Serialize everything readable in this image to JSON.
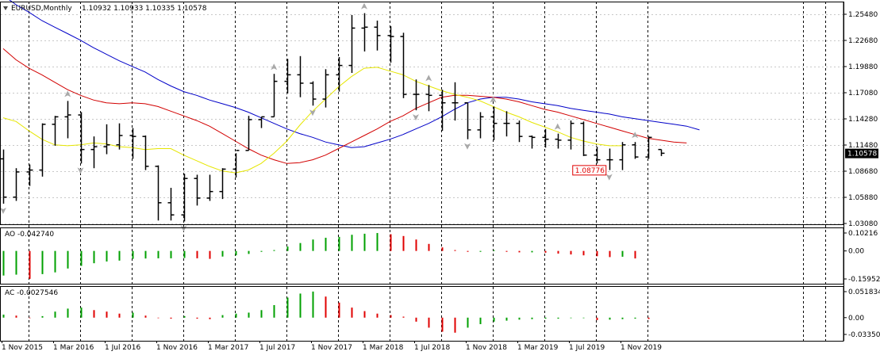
{
  "chart_data": {
    "type": "ohlc",
    "timeframe": "Monthly",
    "main": {
      "title": "EURUSD,Monthly",
      "ohlc_text": "1.10932 1.10933 1.10335 1.10578",
      "price_axis": {
        "ylim": [
          1.0308,
          1.2548
        ],
        "ticks": [
          "1.25480",
          "1.22680",
          "1.19880",
          "1.17080",
          "1.14280",
          "1.11480",
          "1.08680",
          "1.05880",
          "1.03080"
        ]
      },
      "current_price": "1.10578",
      "current_price_value": 1.10578,
      "callout": {
        "label": "1.08776",
        "value": 1.08776,
        "bar_index": 47
      },
      "x_tick_labels": [
        "1 Nov 2015",
        "1 Mar 2016",
        "1 Jul 2016",
        "1 Nov 2016",
        "1 Mar 2017",
        "1 Jul 2017",
        "1 Nov 2017",
        "1 Mar 2018",
        "1 Jul 2018",
        "1 Nov 2018",
        "1 Mar 2019",
        "1 Jul 2019",
        "1 Nov 2019"
      ],
      "bars": [
        [
          1.1,
          1.11,
          1.052,
          1.059
        ],
        [
          1.059,
          1.09,
          1.055,
          1.086
        ],
        [
          1.086,
          1.094,
          1.071,
          1.088
        ],
        [
          1.088,
          1.138,
          1.081,
          1.137
        ],
        [
          1.137,
          1.146,
          1.114,
          1.145
        ],
        [
          1.145,
          1.162,
          1.122,
          1.147
        ],
        [
          1.147,
          1.15,
          1.095,
          1.11
        ],
        [
          1.11,
          1.124,
          1.09,
          1.113
        ],
        [
          1.113,
          1.137,
          1.105,
          1.115
        ],
        [
          1.115,
          1.138,
          1.11,
          1.125
        ],
        [
          1.125,
          1.133,
          1.1,
          1.124
        ],
        [
          1.124,
          1.125,
          1.088,
          1.092
        ],
        [
          1.092,
          1.093,
          1.034,
          1.053
        ],
        [
          1.053,
          1.069,
          1.034,
          1.04
        ],
        [
          1.04,
          1.084,
          1.033,
          1.079
        ],
        [
          1.079,
          1.083,
          1.05,
          1.058
        ],
        [
          1.058,
          1.083,
          1.055,
          1.065
        ],
        [
          1.065,
          1.09,
          1.057,
          1.089
        ],
        [
          1.089,
          1.106,
          1.08,
          1.109
        ],
        [
          1.109,
          1.146,
          1.109,
          1.142
        ],
        [
          1.142,
          1.145,
          1.133,
          1.145
        ],
        [
          1.145,
          1.191,
          1.145,
          1.183
        ],
        [
          1.183,
          1.207,
          1.17,
          1.19
        ],
        [
          1.19,
          1.21,
          1.166,
          1.181
        ],
        [
          1.181,
          1.183,
          1.157,
          1.164
        ],
        [
          1.164,
          1.196,
          1.155,
          1.19
        ],
        [
          1.19,
          1.209,
          1.172,
          1.2
        ],
        [
          1.2,
          1.254,
          1.192,
          1.24
        ],
        [
          1.24,
          1.256,
          1.215,
          1.241
        ],
        [
          1.241,
          1.248,
          1.216,
          1.232
        ],
        [
          1.232,
          1.242,
          1.203,
          1.231
        ],
        [
          1.231,
          1.235,
          1.165,
          1.169
        ],
        [
          1.169,
          1.185,
          1.152,
          1.169
        ],
        [
          1.169,
          1.179,
          1.151,
          1.168
        ],
        [
          1.168,
          1.174,
          1.13,
          1.16
        ],
        [
          1.16,
          1.182,
          1.141,
          1.16
        ],
        [
          1.16,
          1.16,
          1.121,
          1.131
        ],
        [
          1.131,
          1.15,
          1.122,
          1.145
        ],
        [
          1.145,
          1.156,
          1.12,
          1.138
        ],
        [
          1.138,
          1.151,
          1.124,
          1.138
        ],
        [
          1.138,
          1.141,
          1.118,
          1.124
        ],
        [
          1.124,
          1.125,
          1.111,
          1.123
        ],
        [
          1.123,
          1.132,
          1.112,
          1.121
        ],
        [
          1.121,
          1.127,
          1.111,
          1.12
        ],
        [
          1.12,
          1.141,
          1.11,
          1.138
        ],
        [
          1.138,
          1.14,
          1.103,
          1.104
        ],
        [
          1.104,
          1.113,
          1.095,
          1.099
        ],
        [
          1.099,
          1.111,
          1.088,
          1.099
        ],
        [
          1.099,
          1.118,
          1.088,
          1.115
        ],
        [
          1.115,
          1.118,
          1.1,
          1.102
        ],
        [
          1.102,
          1.124,
          1.1,
          1.123
        ],
        [
          1.11,
          1.11,
          1.103,
          1.106
        ]
      ],
      "up_fractal_bars": [
        5,
        21,
        28,
        33,
        38,
        43,
        49
      ],
      "down_fractal_bars": [
        0,
        6,
        14,
        24,
        32,
        36,
        47
      ],
      "ma_lines": [
        {
          "color": "#0000c8",
          "values": [
            1.275,
            1.265,
            1.257,
            1.248,
            1.241,
            1.234,
            1.227,
            1.219,
            1.212,
            1.205,
            1.199,
            1.193,
            1.185,
            1.178,
            1.172,
            1.168,
            1.163,
            1.159,
            1.155,
            1.15,
            1.144,
            1.138,
            1.132,
            1.127,
            1.123,
            1.118,
            1.115,
            1.112,
            1.113,
            1.117,
            1.121,
            1.126,
            1.132,
            1.138,
            1.145,
            1.153,
            1.16,
            1.164,
            1.166,
            1.166,
            1.164,
            1.161,
            1.159,
            1.157,
            1.154,
            1.152,
            1.15,
            1.148,
            1.145,
            1.143,
            1.141,
            1.139,
            1.137,
            1.135,
            1.131
          ]
        },
        {
          "color": "#d20000",
          "values": [
            1.218,
            1.206,
            1.197,
            1.19,
            1.182,
            1.174,
            1.168,
            1.163,
            1.16,
            1.159,
            1.16,
            1.159,
            1.156,
            1.151,
            1.146,
            1.141,
            1.135,
            1.127,
            1.119,
            1.111,
            1.104,
            1.099,
            1.095,
            1.096,
            1.099,
            1.104,
            1.111,
            1.118,
            1.125,
            1.132,
            1.14,
            1.146,
            1.154,
            1.16,
            1.166,
            1.168,
            1.168,
            1.167,
            1.166,
            1.164,
            1.161,
            1.157,
            1.153,
            1.15,
            1.146,
            1.142,
            1.138,
            1.134,
            1.13,
            1.126,
            1.122,
            1.12,
            1.118,
            1.117
          ]
        },
        {
          "color": "#e6e600",
          "values": [
            1.144,
            1.14,
            1.13,
            1.121,
            1.115,
            1.114,
            1.115,
            1.117,
            1.116,
            1.113,
            1.112,
            1.11,
            1.111,
            1.111,
            1.104,
            1.098,
            1.092,
            1.087,
            1.085,
            1.088,
            1.095,
            1.106,
            1.119,
            1.136,
            1.151,
            1.164,
            1.177,
            1.188,
            1.197,
            1.198,
            1.194,
            1.19,
            1.183,
            1.178,
            1.173,
            1.169,
            1.166,
            1.162,
            1.156,
            1.15,
            1.145,
            1.139,
            1.134,
            1.129,
            1.123,
            1.119,
            1.116,
            1.114,
            1.114
          ]
        }
      ],
      "ma_start_index": [
        0,
        0,
        0
      ]
    },
    "ao": {
      "label": "AO -0.042740",
      "ticks": [
        "0.10216",
        "0.00",
        "-0.159528"
      ],
      "ylim": [
        -0.159528,
        0.10216
      ],
      "values": [
        -0.14,
        -0.135,
        -0.159,
        -0.132,
        -0.122,
        -0.1,
        -0.085,
        -0.07,
        -0.06,
        -0.055,
        -0.045,
        -0.043,
        -0.042,
        -0.042,
        -0.04,
        -0.042,
        -0.045,
        -0.032,
        -0.025,
        -0.017,
        -0.005,
        0.005,
        0.025,
        0.045,
        0.065,
        0.075,
        0.08,
        0.092,
        0.098,
        0.102,
        0.095,
        0.085,
        0.065,
        0.04,
        0.02,
        0.005,
        -0.005,
        -0.005,
        0.005,
        -0.005,
        -0.008,
        -0.008,
        -0.01,
        -0.015,
        -0.02,
        -0.025,
        -0.03,
        -0.035,
        -0.033,
        -0.0427
      ]
    },
    "ac": {
      "label": "AC -0.0027546",
      "ticks": [
        "0.0518344",
        "0.00",
        "-0.033506"
      ],
      "ylim": [
        -0.033506,
        0.0518344
      ],
      "values": [
        0.006,
        0.004,
        -0.001,
        0.003,
        0.012,
        0.018,
        0.02,
        0.015,
        0.012,
        0.008,
        0.01,
        0.004,
        -0.001,
        -0.002,
        0.003,
        -0.002,
        -0.003,
        0.005,
        0.008,
        0.01,
        0.015,
        0.025,
        0.04,
        0.048,
        0.052,
        0.042,
        0.03,
        0.02,
        0.013,
        0.008,
        0.005,
        0.002,
        -0.008,
        -0.02,
        -0.028,
        -0.03,
        -0.02,
        -0.013,
        -0.008,
        -0.006,
        -0.004,
        -0.003,
        -0.002,
        -0.002,
        -0.001,
        -0.001,
        -0.005,
        -0.004,
        -0.003,
        -0.002,
        -0.0027
      ]
    }
  }
}
